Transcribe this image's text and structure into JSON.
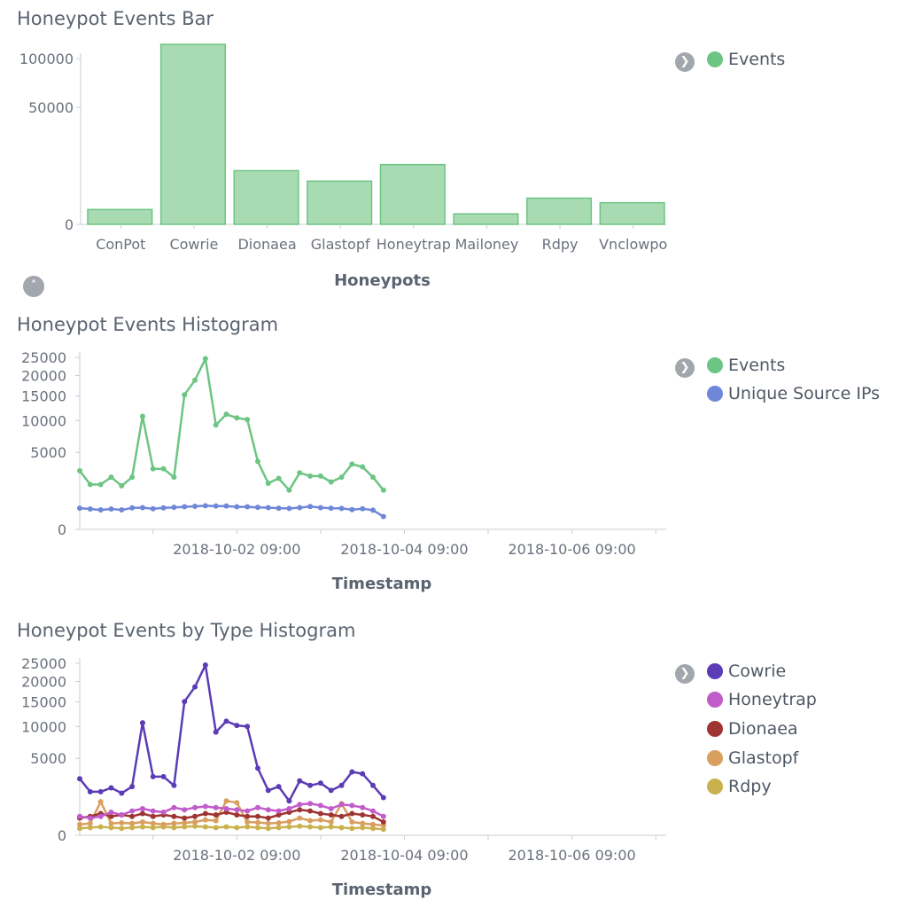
{
  "colors": {
    "events": "#6cc583",
    "events_bar_fill": "#a9dbb3",
    "unique_ips": "#6f87d8",
    "cowrie": "#5b3cb5",
    "honeytrap": "#c15ccb",
    "dionaea": "#9e3533",
    "glastopf": "#d99f5f",
    "rdpy": "#c9b24e"
  },
  "panels": [
    {
      "title": "Honeypot Events Bar",
      "legend": [
        {
          "label": "Events",
          "color_key": "events"
        }
      ]
    },
    {
      "title": "Honeypot Events Histogram",
      "legend": [
        {
          "label": "Events",
          "color_key": "events"
        },
        {
          "label": "Unique Source IPs",
          "color_key": "unique_ips"
        }
      ]
    },
    {
      "title": "Honeypot Events by Type Histogram",
      "legend": [
        {
          "label": "Cowrie",
          "color_key": "cowrie"
        },
        {
          "label": "Honeytrap",
          "color_key": "honeytrap"
        },
        {
          "label": "Dionaea",
          "color_key": "dionaea"
        },
        {
          "label": "Glastopf",
          "color_key": "glastopf"
        },
        {
          "label": "Rdpy",
          "color_key": "rdpy"
        }
      ]
    }
  ],
  "chart_data": [
    {
      "type": "bar",
      "title": "Honeypot Events Bar",
      "xlabel": "Honeypots",
      "ylabel": "",
      "categories": [
        "ConPot",
        "Cowrie",
        "Dionaea",
        "Glastopf",
        "Honeytrap",
        "Mailoney",
        "Rdpy",
        "Vnclowpo"
      ],
      "series": [
        {
          "name": "Events",
          "values": [
            800,
            118000,
            10500,
            6800,
            13000,
            400,
            2500,
            1700
          ]
        }
      ],
      "y_scale": "sqrt",
      "yticks": [
        0,
        50000,
        100000
      ],
      "ytick_labels": [
        "0",
        "50000",
        "100000"
      ],
      "grid": false,
      "legend_position": "right"
    },
    {
      "type": "line",
      "title": "Honeypot Events Histogram",
      "xlabel": "Timestamp",
      "ylabel": "",
      "y_scale": "sqrt",
      "x_start": "2018-09-30 12:00",
      "x_end": "2018-10-07 12:00",
      "x_interval_hours": 3,
      "xticks": [
        "2018-10-02 09:00",
        "2018-10-04 09:00",
        "2018-10-06 09:00"
      ],
      "yticks": [
        0,
        5000,
        10000,
        15000,
        20000,
        25000
      ],
      "ytick_labels": [
        "0",
        "5000",
        "10000",
        "15000",
        "20000",
        "25000"
      ],
      "grid": false,
      "legend_position": "right",
      "series": [
        {
          "name": "Events",
          "color_key": "events",
          "values": [
            2900,
            1700,
            1700,
            2300,
            1600,
            2300,
            10800,
            3100,
            3100,
            2300,
            15300,
            18800,
            24600,
            9200,
            11200,
            10500,
            10200,
            3900,
            1800,
            2200,
            1300,
            2700,
            2400,
            2400,
            1900,
            2300,
            3600,
            3300,
            2300,
            1300
          ]
        },
        {
          "name": "Unique Source IPs",
          "color_key": "unique_ips",
          "values": [
            380,
            350,
            320,
            350,
            320,
            390,
            400,
            360,
            390,
            410,
            430,
            450,
            470,
            460,
            460,
            430,
            430,
            410,
            400,
            380,
            370,
            400,
            440,
            400,
            380,
            370,
            330,
            360,
            310,
            140
          ]
        }
      ]
    },
    {
      "type": "line",
      "title": "Honeypot Events by Type Histogram",
      "xlabel": "Timestamp",
      "ylabel": "",
      "y_scale": "sqrt",
      "x_start": "2018-09-30 12:00",
      "x_end": "2018-10-07 12:00",
      "x_interval_hours": 3,
      "xticks": [
        "2018-10-02 09:00",
        "2018-10-04 09:00",
        "2018-10-06 09:00"
      ],
      "yticks": [
        0,
        5000,
        10000,
        15000,
        20000,
        25000
      ],
      "ytick_labels": [
        "0",
        "5000",
        "10000",
        "15000",
        "20000",
        "25000"
      ],
      "grid": false,
      "legend_position": "right",
      "series": [
        {
          "name": "Cowrie",
          "color_key": "cowrie",
          "values": [
            2700,
            1600,
            1600,
            1900,
            1500,
            2000,
            10700,
            2900,
            2900,
            2100,
            15100,
            18600,
            24500,
            9000,
            11000,
            10200,
            10000,
            3800,
            1700,
            2000,
            1000,
            2500,
            2100,
            2300,
            1700,
            2100,
            3400,
            3200,
            2100,
            1200
          ]
        },
        {
          "name": "Honeytrap",
          "color_key": "honeytrap",
          "values": [
            300,
            250,
            300,
            450,
            350,
            500,
            600,
            500,
            450,
            650,
            550,
            650,
            700,
            650,
            600,
            550,
            500,
            650,
            550,
            500,
            600,
            800,
            850,
            750,
            600,
            800,
            750,
            650,
            500,
            300
          ]
        },
        {
          "name": "Dionaea",
          "color_key": "dionaea",
          "values": [
            250,
            300,
            400,
            300,
            350,
            300,
            400,
            300,
            350,
            300,
            250,
            300,
            400,
            350,
            450,
            350,
            300,
            300,
            250,
            350,
            450,
            550,
            500,
            400,
            350,
            300,
            400,
            350,
            300,
            150
          ]
        },
        {
          "name": "Glastopf",
          "color_key": "glastopf",
          "values": [
            100,
            120,
            950,
            120,
            130,
            120,
            150,
            120,
            100,
            120,
            130,
            150,
            200,
            180,
            1000,
            900,
            150,
            140,
            120,
            130,
            160,
            250,
            180,
            200,
            150,
            850,
            150,
            120,
            100,
            80
          ]
        },
        {
          "name": "Rdpy",
          "color_key": "rdpy",
          "values": [
            40,
            50,
            60,
            50,
            40,
            50,
            60,
            50,
            60,
            50,
            60,
            70,
            60,
            50,
            60,
            50,
            60,
            50,
            40,
            50,
            60,
            70,
            60,
            50,
            60,
            50,
            40,
            50,
            40,
            30
          ]
        }
      ]
    }
  ]
}
